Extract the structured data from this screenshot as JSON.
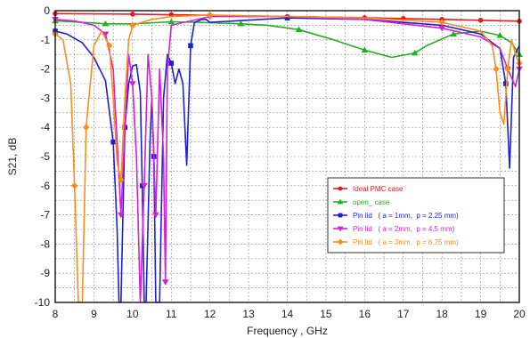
{
  "chart_data": {
    "type": "line",
    "title": "",
    "xlabel": "Frequency ,  GHz",
    "ylabel": "S21,  dB",
    "xlim": [
      8,
      20
    ],
    "ylim": [
      -10,
      0
    ],
    "xticks": [
      "8",
      "9",
      "10",
      "11",
      "12",
      "13",
      "14",
      "15",
      "16",
      "17",
      "18",
      "19",
      "20"
    ],
    "yticks": [
      "0",
      "-1",
      "-2",
      "-3",
      "-4",
      "-5",
      "-6",
      "-7",
      "-8",
      "-9",
      "-10"
    ],
    "grid": true,
    "legend_position": "lower-right",
    "series": [
      {
        "name": "Ideal PMC case",
        "color": "#e41a1c",
        "marker": "circle",
        "x": [
          8.0,
          10.0,
          11.0,
          12.0,
          14.0,
          16.0,
          17.0,
          18.0,
          19.0,
          20.0
        ],
        "y": [
          -0.1,
          -0.12,
          -0.14,
          -0.16,
          -0.2,
          -0.24,
          -0.27,
          -0.3,
          -0.33,
          -0.36
        ]
      },
      {
        "name": "open_ case",
        "color": "#22b022",
        "marker": "triangle",
        "x": [
          8.0,
          9.0,
          9.3,
          10.0,
          11.0,
          11.7,
          12.8,
          13.5,
          14.3,
          15.2,
          16.0,
          16.7,
          17.3,
          17.6,
          18.3,
          19.0,
          19.5,
          19.8,
          20.0
        ],
        "y": [
          -0.35,
          -0.42,
          -0.45,
          -0.45,
          -0.38,
          -0.4,
          -0.45,
          -0.5,
          -0.65,
          -1.0,
          -1.35,
          -1.6,
          -1.45,
          -1.2,
          -0.8,
          -0.7,
          -0.85,
          -1.1,
          -1.5
        ]
      },
      {
        "name": "Pin lid   ( a = 1mm,  p = 2.25 mm)",
        "color": "#1f1fd6",
        "marker": "square",
        "x": [
          8.0,
          8.3,
          8.7,
          9.0,
          9.3,
          9.5,
          9.6,
          9.65,
          9.7,
          9.75,
          9.8,
          9.9,
          10.0,
          10.1,
          10.2,
          10.25,
          10.3,
          10.35,
          10.45,
          10.5,
          10.55,
          10.6,
          10.7,
          10.8,
          10.9,
          11.0,
          11.1,
          11.2,
          11.3,
          11.4,
          11.5,
          11.6,
          11.8,
          11.9,
          12.0,
          14.0,
          16.0,
          18.0,
          19.0,
          19.5,
          19.65,
          19.75,
          19.85,
          20.0
        ],
        "y": [
          -0.7,
          -0.8,
          -1.1,
          -1.6,
          -2.4,
          -4.5,
          -7.5,
          -10.0,
          -10.0,
          -7.0,
          -4.0,
          -2.5,
          -1.9,
          -1.85,
          -2.8,
          -6.0,
          -10.0,
          -10.0,
          -4.5,
          -3.0,
          -5.0,
          -10.0,
          -10.0,
          -3.0,
          -1.5,
          -1.8,
          -2.5,
          -2.0,
          -2.5,
          -5.3,
          -1.2,
          -0.4,
          -0.3,
          -0.3,
          -0.4,
          -0.25,
          -0.3,
          -0.5,
          -0.8,
          -1.3,
          -2.5,
          -5.4,
          -1.6,
          -1.2
        ]
      },
      {
        "name": "Pin lid   ( a = 2mm,  p = 4.5 mm)",
        "color": "#d61fd6",
        "marker": "triangle-down",
        "x": [
          8.0,
          8.5,
          9.0,
          9.3,
          9.5,
          9.6,
          9.7,
          9.8,
          9.9,
          10.0,
          10.1,
          10.2,
          10.3,
          10.4,
          10.5,
          10.6,
          10.7,
          10.8,
          10.85,
          10.9,
          11.0,
          12.0,
          14.0,
          16.0,
          18.0,
          19.0,
          19.5,
          19.7,
          19.8,
          19.9,
          20.0
        ],
        "y": [
          -0.3,
          -0.35,
          -0.5,
          -0.8,
          -2.0,
          -4.5,
          -7.0,
          -4.0,
          -1.5,
          -2.5,
          -5.0,
          -10.0,
          -6.0,
          -1.5,
          -3.0,
          -7.0,
          -2.0,
          -5.0,
          -9.3,
          -2.0,
          -0.5,
          -0.2,
          -0.2,
          -0.3,
          -0.6,
          -0.9,
          -1.3,
          -2.0,
          -2.3,
          -2.6,
          -2.0
        ]
      },
      {
        "name": "Pin lid   ( a = 3mm,  p = 6.75 mm)",
        "color": "#ff8c1a",
        "marker": "diamond",
        "x": [
          8.0,
          8.2,
          8.4,
          8.5,
          8.6,
          8.7,
          8.8,
          9.0,
          9.2,
          9.4,
          9.5,
          9.6,
          9.7,
          9.8,
          9.9,
          10.0,
          10.5,
          11.0,
          12.0,
          14.0,
          16.0,
          18.0,
          19.0,
          19.3,
          19.4,
          19.5,
          19.6,
          19.7,
          19.8,
          19.9,
          20.0
        ],
        "y": [
          -0.8,
          -1.0,
          -2.5,
          -6.0,
          -10.0,
          -10.0,
          -4.0,
          -1.2,
          -0.7,
          -1.2,
          -3.0,
          -5.2,
          -5.8,
          -3.0,
          -1.0,
          -0.5,
          -0.3,
          -0.2,
          -0.15,
          -0.2,
          -0.25,
          -0.4,
          -0.7,
          -1.2,
          -2.0,
          -3.5,
          -3.9,
          -2.0,
          -1.0,
          -1.5,
          -1.8
        ]
      }
    ]
  }
}
